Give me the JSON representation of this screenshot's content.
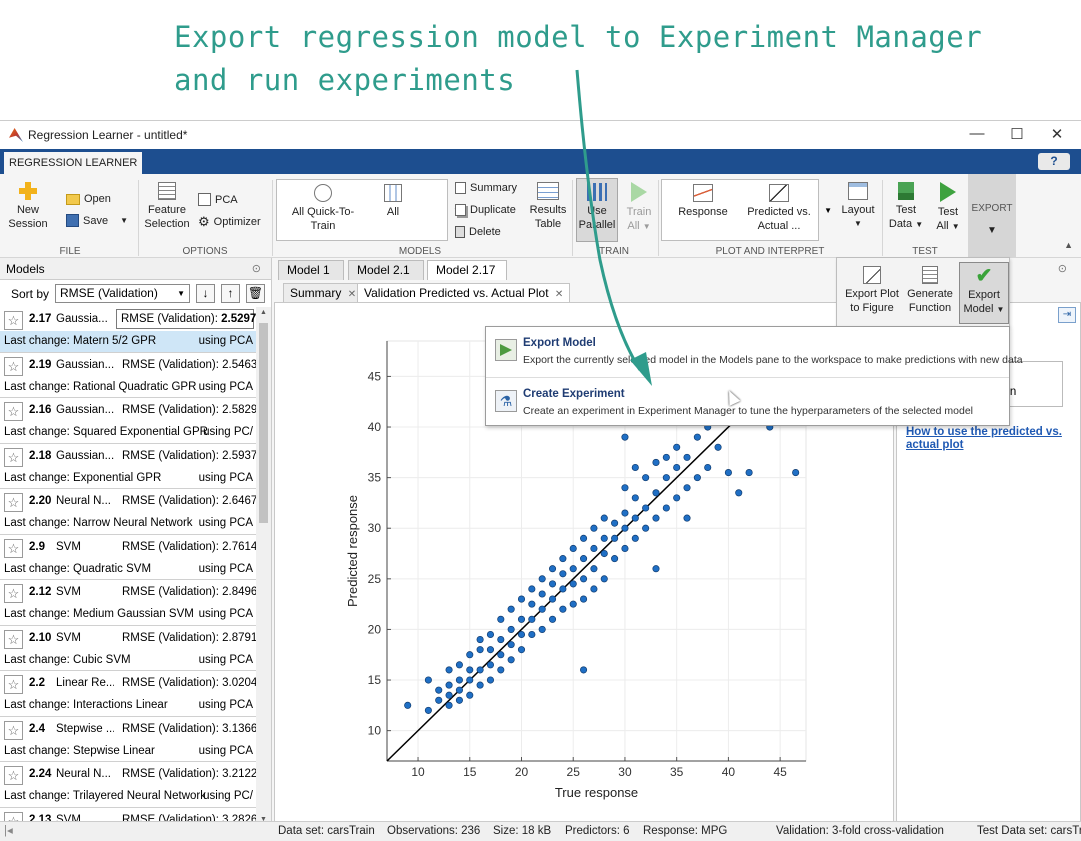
{
  "annotation": {
    "line1": "Export regression model to Experiment Manager",
    "line2": "and run experiments"
  },
  "window": {
    "title": "Regression Learner - untitled*",
    "app_tab": "REGRESSION LEARNER",
    "help": "?"
  },
  "toolstrip": {
    "file": {
      "group": "FILE",
      "new_session_1": "New",
      "new_session_2": "Session",
      "open": "Open",
      "save": "Save"
    },
    "options": {
      "group": "OPTIONS",
      "feature_1": "Feature",
      "feature_2": "Selection",
      "pca": "PCA",
      "optimizer": "Optimizer"
    },
    "models": {
      "group": "MODELS",
      "all_quick_1": "All Quick-To-",
      "all_quick_2": "Train",
      "all": "All",
      "summary": "Summary",
      "duplicate": "Duplicate",
      "delete": "Delete",
      "results_1": "Results",
      "results_2": "Table"
    },
    "train": {
      "group": "TRAIN",
      "use_parallel_1": "Use",
      "use_parallel_2": "Parallel",
      "train_all_1": "Train",
      "train_all_2": "All"
    },
    "plot": {
      "group": "PLOT AND INTERPRET",
      "response": "Response",
      "pva_1": "Predicted vs.",
      "pva_2": "Actual",
      "layout": "Layout"
    },
    "test": {
      "group": "TEST",
      "test_data_1": "Test",
      "test_data_2": "Data",
      "test_all_1": "Test",
      "test_all_2": "All"
    },
    "export": {
      "group": "EXPORT",
      "export_plot_1": "Export Plot",
      "export_plot_2": "to Figure",
      "gen_fn_1": "Generate",
      "gen_fn_2": "Function",
      "export_model_1": "Export",
      "export_model_2": "Model"
    }
  },
  "models_pane": {
    "title": "Models",
    "sort_label": "Sort by",
    "sort_value": "RMSE (Validation)",
    "items": [
      {
        "num": "2.17",
        "name": "Gaussia...",
        "metric_label": "RMSE (Validation):",
        "metric_value": "2.5297",
        "change": "Last change: Matern 5/2 GPR",
        "features": "using PCA"
      },
      {
        "num": "2.19",
        "name": "Gaussian...",
        "metric_label": "RMSE (Validation):",
        "metric_value": "2.5463",
        "change": "Last change: Rational Quadratic GPR",
        "features": "using PCA"
      },
      {
        "num": "2.16",
        "name": "Gaussian...",
        "metric_label": "RMSE (Validation):",
        "metric_value": "2.5829",
        "change": "Last change: Squared Exponential GPR",
        "features": "using PC/"
      },
      {
        "num": "2.18",
        "name": "Gaussian...",
        "metric_label": "RMSE (Validation):",
        "metric_value": "2.5937",
        "change": "Last change: Exponential GPR",
        "features": "using PCA"
      },
      {
        "num": "2.20",
        "name": "Neural N...",
        "metric_label": "RMSE (Validation):",
        "metric_value": "2.6467",
        "change": "Last change: Narrow Neural Network",
        "features": "using PCA"
      },
      {
        "num": "2.9",
        "name": "SVM",
        "metric_label": "RMSE (Validation):",
        "metric_value": "2.7614",
        "change": "Last change: Quadratic SVM",
        "features": "using PCA"
      },
      {
        "num": "2.12",
        "name": "SVM",
        "metric_label": "RMSE (Validation):",
        "metric_value": "2.8496",
        "change": "Last change: Medium Gaussian SVM",
        "features": "using PCA"
      },
      {
        "num": "2.10",
        "name": "SVM",
        "metric_label": "RMSE (Validation):",
        "metric_value": "2.8791",
        "change": "Last change: Cubic SVM",
        "features": "using PCA"
      },
      {
        "num": "2.2",
        "name": "Linear Re...",
        "metric_label": "RMSE (Validation):",
        "metric_value": "3.0204",
        "change": "Last change: Interactions Linear",
        "features": "using PCA"
      },
      {
        "num": "2.4",
        "name": "Stepwise ...",
        "metric_label": "RMSE (Validation):",
        "metric_value": "3.1366",
        "change": "Last change: Stepwise Linear",
        "features": "using PCA"
      },
      {
        "num": "2.24",
        "name": "Neural N...",
        "metric_label": "RMSE (Validation):",
        "metric_value": "3.2122",
        "change": "Last change: Trilayered Neural Network",
        "features": "using PC/"
      },
      {
        "num": "2.13",
        "name": "SVM",
        "metric_label": "RMSE (Validation):",
        "metric_value": "3.2826",
        "change": "",
        "features": ""
      }
    ]
  },
  "doc_tabs": [
    "Model 1",
    "Model 2.1",
    "Model 2.17"
  ],
  "sub_tabs": [
    "Summary",
    "Validation Predicted vs. Actual Plot"
  ],
  "popup": {
    "export_model_title": "Export Model",
    "export_model_desc": "Export the currently selected model in the Models pane to the workspace to make predictions with new data",
    "create_exp_title": "Create Experiment",
    "create_exp_desc": "Create an experiment in Experiment Manager to tune the hyperparameters of the selected model"
  },
  "right_panel": {
    "partial_text": "ction",
    "link": "How to use the predicted vs. actual plot"
  },
  "statusbar": {
    "dataset": "Data set: carsTrain",
    "observations": "Observations: 236",
    "size": "Size: 18 kB",
    "predictors": "Predictors: 6",
    "response": "Response: MPG",
    "validation": "Validation: 3-fold cross-validation",
    "test": "Test Data set: carsTrain"
  },
  "colors": {
    "accent": "#1d4e8f",
    "annotation": "#2f9c8c",
    "marker": "#1f6fc5",
    "selected": "#cfe6f7"
  },
  "chart_data": {
    "type": "scatter",
    "xlabel": "True response",
    "ylabel": "Predicted response",
    "xlim": [
      7.0,
      47.5
    ],
    "ylim": [
      7.0,
      48.5
    ],
    "xticks": [
      10,
      15,
      20,
      25,
      30,
      35,
      40,
      45
    ],
    "yticks": [
      10,
      15,
      20,
      25,
      30,
      35,
      40,
      45
    ],
    "reference_line": "y = x",
    "points": [
      [
        9,
        12.5
      ],
      [
        11,
        12
      ],
      [
        11,
        15
      ],
      [
        12,
        13
      ],
      [
        12,
        14
      ],
      [
        13,
        12.5
      ],
      [
        13,
        13.5
      ],
      [
        13,
        14.5
      ],
      [
        13,
        16
      ],
      [
        14,
        13
      ],
      [
        14,
        14
      ],
      [
        14,
        15
      ],
      [
        14,
        16.5
      ],
      [
        15,
        13.5
      ],
      [
        15,
        15
      ],
      [
        15,
        16
      ],
      [
        15,
        17.5
      ],
      [
        16,
        14.5
      ],
      [
        16,
        16
      ],
      [
        16,
        18
      ],
      [
        16,
        19
      ],
      [
        17,
        15
      ],
      [
        17,
        16.5
      ],
      [
        17,
        18
      ],
      [
        17,
        19.5
      ],
      [
        18,
        16
      ],
      [
        18,
        17.5
      ],
      [
        18,
        19
      ],
      [
        18,
        21
      ],
      [
        19,
        17
      ],
      [
        19,
        18.5
      ],
      [
        19,
        20
      ],
      [
        19,
        22
      ],
      [
        20,
        18
      ],
      [
        20,
        19.5
      ],
      [
        20,
        21
      ],
      [
        20,
        23
      ],
      [
        21,
        19.5
      ],
      [
        21,
        21
      ],
      [
        21,
        22.5
      ],
      [
        21,
        24
      ],
      [
        22,
        20
      ],
      [
        22,
        22
      ],
      [
        22,
        23.5
      ],
      [
        22,
        25
      ],
      [
        23,
        21
      ],
      [
        23,
        23
      ],
      [
        23,
        24.5
      ],
      [
        23,
        26
      ],
      [
        24,
        22
      ],
      [
        24,
        24
      ],
      [
        24,
        25.5
      ],
      [
        24,
        27
      ],
      [
        25,
        22.5
      ],
      [
        25,
        24.5
      ],
      [
        25,
        26
      ],
      [
        25,
        28
      ],
      [
        26,
        23
      ],
      [
        26,
        25
      ],
      [
        26,
        27
      ],
      [
        26,
        29
      ],
      [
        27,
        24
      ],
      [
        27,
        26
      ],
      [
        27,
        28
      ],
      [
        27,
        30
      ],
      [
        28,
        25
      ],
      [
        28,
        27.5
      ],
      [
        28,
        29
      ],
      [
        28,
        31
      ],
      [
        29,
        27
      ],
      [
        29,
        29
      ],
      [
        29,
        30.5
      ],
      [
        30,
        28
      ],
      [
        30,
        30
      ],
      [
        30,
        31.5
      ],
      [
        30,
        34
      ],
      [
        31,
        29
      ],
      [
        31,
        31
      ],
      [
        31,
        33
      ],
      [
        31,
        36
      ],
      [
        32,
        30
      ],
      [
        32,
        32
      ],
      [
        32,
        35
      ],
      [
        33,
        31
      ],
      [
        33,
        33.5
      ],
      [
        33,
        36.5
      ],
      [
        34,
        32
      ],
      [
        34,
        35
      ],
      [
        34,
        37
      ],
      [
        35,
        33
      ],
      [
        35,
        36
      ],
      [
        35,
        38
      ],
      [
        36,
        34
      ],
      [
        36,
        37
      ],
      [
        37,
        35
      ],
      [
        37,
        39
      ],
      [
        38,
        36
      ],
      [
        38,
        40
      ],
      [
        39,
        38
      ],
      [
        40,
        35.5
      ],
      [
        41,
        33.5
      ],
      [
        42,
        35.5
      ],
      [
        44,
        40
      ],
      [
        46.5,
        35.5
      ],
      [
        36,
        31
      ],
      [
        26,
        16
      ],
      [
        30,
        39
      ],
      [
        33,
        26
      ],
      [
        29,
        41
      ]
    ]
  }
}
